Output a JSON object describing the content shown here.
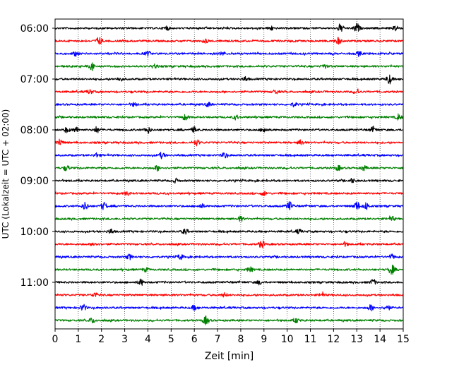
{
  "chart_data": {
    "type": "line",
    "title": "",
    "xlabel": "Zeit  [min]",
    "ylabel": "UTC (Lokalzeit = UTC + 02:00)",
    "xlim": [
      0,
      15
    ],
    "x_ticks": [
      0,
      1,
      2,
      3,
      4,
      5,
      6,
      7,
      8,
      9,
      10,
      11,
      12,
      13,
      14,
      15
    ],
    "y_tick_labels": [
      "06:00",
      "07:00",
      "08:00",
      "09:00",
      "10:00",
      "11:00"
    ],
    "grid": "vertical dotted lines at each minute",
    "legend": "none",
    "trace_interval_minutes": 15,
    "start_time": "06:00",
    "colors_cycle": [
      "#000000",
      "#ff0000",
      "#0000ff",
      "#008000"
    ],
    "traces": [
      {
        "start": "06:00",
        "color": "#000000",
        "events": [
          [
            12.3,
            2.0
          ],
          [
            13.0,
            2.6
          ],
          [
            14.7,
            1.6
          ],
          [
            4.8,
            1.2
          ],
          [
            9.3,
            1.1
          ]
        ]
      },
      {
        "start": "06:15",
        "color": "#ff0000",
        "events": [
          [
            1.9,
            2.2
          ],
          [
            12.2,
            1.8
          ],
          [
            6.5,
            1.0
          ]
        ]
      },
      {
        "start": "06:30",
        "color": "#0000ff",
        "events": [
          [
            0.9,
            1.2
          ],
          [
            4.0,
            1.2
          ],
          [
            7.2,
            1.0
          ],
          [
            13.1,
            1.1
          ]
        ]
      },
      {
        "start": "06:45",
        "color": "#008000",
        "events": [
          [
            1.6,
            2.2
          ],
          [
            4.3,
            1.0
          ],
          [
            11.6,
            1.0
          ]
        ]
      },
      {
        "start": "07:00",
        "color": "#000000",
        "events": [
          [
            14.4,
            2.6
          ],
          [
            2.8,
            1.0
          ],
          [
            8.2,
            1.1
          ]
        ]
      },
      {
        "start": "07:15",
        "color": "#ff0000",
        "events": [
          [
            1.5,
            1.1
          ],
          [
            9.5,
            1.1
          ],
          [
            13.0,
            1.2
          ]
        ]
      },
      {
        "start": "07:30",
        "color": "#0000ff",
        "events": [
          [
            3.4,
            1.0
          ],
          [
            6.6,
            1.1
          ],
          [
            10.3,
            1.1
          ]
        ]
      },
      {
        "start": "07:45",
        "color": "#008000",
        "events": [
          [
            5.6,
            1.5
          ],
          [
            14.8,
            1.6
          ],
          [
            7.8,
            1.1
          ]
        ]
      },
      {
        "start": "08:00",
        "color": "#000000",
        "events": [
          [
            0.5,
            1.4
          ],
          [
            0.9,
            1.4
          ],
          [
            1.8,
            1.6
          ],
          [
            4.0,
            1.8
          ],
          [
            6.0,
            1.5
          ],
          [
            9.0,
            1.5
          ],
          [
            13.7,
            1.4
          ]
        ]
      },
      {
        "start": "08:15",
        "color": "#ff0000",
        "events": [
          [
            0.2,
            2.0
          ],
          [
            6.1,
            1.5
          ],
          [
            10.6,
            1.4
          ]
        ]
      },
      {
        "start": "08:30",
        "color": "#0000ff",
        "events": [
          [
            4.6,
            1.6
          ],
          [
            7.3,
            1.4
          ],
          [
            1.8,
            1.2
          ]
        ]
      },
      {
        "start": "08:45",
        "color": "#008000",
        "events": [
          [
            0.5,
            1.4
          ],
          [
            4.4,
            1.3
          ],
          [
            12.2,
            1.3
          ],
          [
            13.3,
            1.3
          ]
        ]
      },
      {
        "start": "09:00",
        "color": "#000000",
        "events": [
          [
            5.2,
            1.1
          ],
          [
            12.8,
            1.1
          ]
        ]
      },
      {
        "start": "09:15",
        "color": "#ff0000",
        "events": [
          [
            3.1,
            1.0
          ],
          [
            9.0,
            1.1
          ]
        ]
      },
      {
        "start": "09:30",
        "color": "#0000ff",
        "events": [
          [
            1.3,
            2.2
          ],
          [
            2.1,
            2.0
          ],
          [
            10.1,
            2.4
          ],
          [
            13.0,
            2.3
          ],
          [
            13.4,
            2.0
          ],
          [
            6.3,
            1.2
          ]
        ]
      },
      {
        "start": "09:45",
        "color": "#008000",
        "events": [
          [
            8.0,
            1.3
          ],
          [
            14.5,
            1.3
          ]
        ]
      },
      {
        "start": "10:00",
        "color": "#000000",
        "events": [
          [
            5.6,
            1.4
          ],
          [
            2.4,
            1.2
          ],
          [
            10.5,
            1.1
          ]
        ]
      },
      {
        "start": "10:15",
        "color": "#ff0000",
        "events": [
          [
            8.9,
            2.1
          ],
          [
            1.7,
            1.0
          ],
          [
            12.5,
            1.0
          ]
        ]
      },
      {
        "start": "10:30",
        "color": "#0000ff",
        "events": [
          [
            3.2,
            1.3
          ],
          [
            5.4,
            1.3
          ],
          [
            14.5,
            1.3
          ]
        ]
      },
      {
        "start": "10:45",
        "color": "#008000",
        "events": [
          [
            14.5,
            2.8
          ],
          [
            8.4,
            1.3
          ],
          [
            3.9,
            1.1
          ]
        ]
      },
      {
        "start": "11:00",
        "color": "#000000",
        "events": [
          [
            3.7,
            1.7
          ],
          [
            13.7,
            1.5
          ],
          [
            8.8,
            1.1
          ]
        ]
      },
      {
        "start": "11:15",
        "color": "#ff0000",
        "events": [
          [
            1.7,
            1.2
          ],
          [
            11.5,
            1.1
          ],
          [
            7.3,
            1.0
          ]
        ]
      },
      {
        "start": "11:30",
        "color": "#0000ff",
        "events": [
          [
            1.2,
            1.8
          ],
          [
            6.0,
            1.3
          ],
          [
            13.6,
            1.5
          ],
          [
            14.3,
            1.6
          ]
        ]
      },
      {
        "start": "11:45",
        "color": "#008000",
        "events": [
          [
            1.6,
            1.4
          ],
          [
            6.5,
            2.3
          ],
          [
            10.4,
            1.2
          ]
        ]
      }
    ]
  }
}
